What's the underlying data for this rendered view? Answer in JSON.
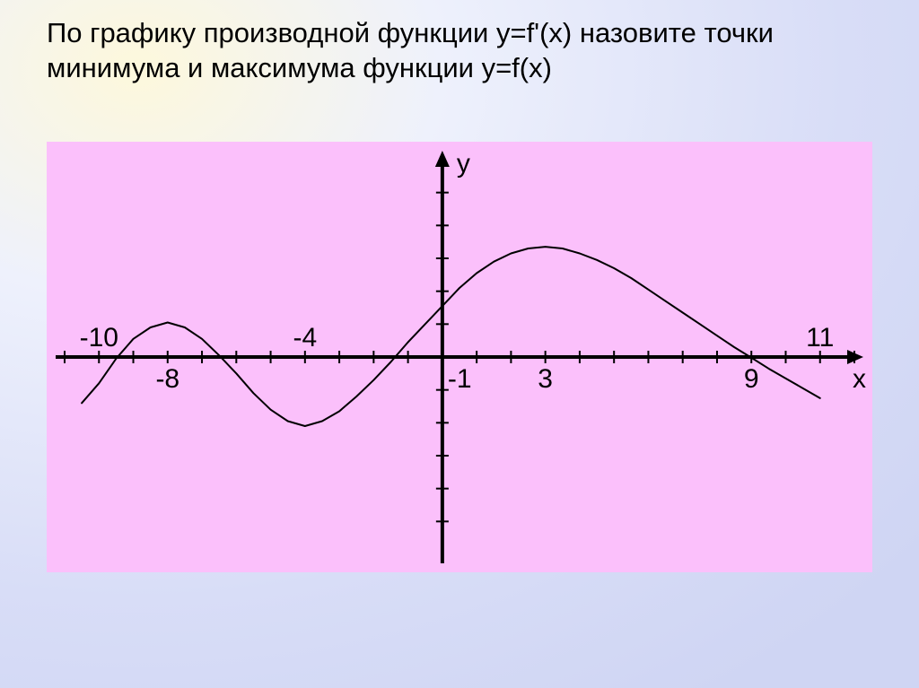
{
  "title_text": "По графику производной функции y=f'(x) назовите точки минимума и максимума функции y=f(x)",
  "background": {
    "stops": [
      "#fdf8dc",
      "#eef1fc",
      "#d8ddf7",
      "#cfd5f3"
    ]
  },
  "chart": {
    "type": "line",
    "plot_bg": "#fbc0fb",
    "axis_color": "#000000",
    "curve_color": "#000000",
    "curve_width": 2,
    "axis_width": 4,
    "tick_len": 7,
    "xlim": [
      -11,
      12
    ],
    "ylim": [
      -6,
      6
    ],
    "x_tick_min": -11,
    "x_tick_max": 12,
    "y_tick_min": -5,
    "y_tick_max": 5,
    "x_labels": [
      {
        "x": -10,
        "text": "-10",
        "dy": -12,
        "anchor": "middle"
      },
      {
        "x": -8,
        "text": "-8",
        "dy": 34,
        "anchor": "middle"
      },
      {
        "x": -4,
        "text": "-4",
        "dy": -12,
        "anchor": "middle"
      },
      {
        "x": -1,
        "text": "-1",
        "dy": 34,
        "anchor": "start"
      },
      {
        "x": 3,
        "text": "3",
        "dy": 34,
        "anchor": "middle"
      },
      {
        "x": 9,
        "text": "9",
        "dy": 34,
        "anchor": "middle"
      },
      {
        "x": 11,
        "text": "11",
        "dy": -12,
        "anchor": "middle"
      }
    ],
    "y_axis_label": "y",
    "x_axis_label": "x",
    "curve_points": [
      {
        "x": -10.5,
        "y": -1.4
      },
      {
        "x": -10.0,
        "y": -0.8
      },
      {
        "x": -9.5,
        "y": -0.05
      },
      {
        "x": -9.0,
        "y": 0.55
      },
      {
        "x": -8.5,
        "y": 0.9
      },
      {
        "x": -8.0,
        "y": 1.05
      },
      {
        "x": -7.5,
        "y": 0.9
      },
      {
        "x": -7.0,
        "y": 0.55
      },
      {
        "x": -6.5,
        "y": 0.05
      },
      {
        "x": -6.0,
        "y": -0.5
      },
      {
        "x": -5.5,
        "y": -1.1
      },
      {
        "x": -5.0,
        "y": -1.6
      },
      {
        "x": -4.5,
        "y": -1.95
      },
      {
        "x": -4.0,
        "y": -2.1
      },
      {
        "x": -3.5,
        "y": -1.95
      },
      {
        "x": -3.0,
        "y": -1.65
      },
      {
        "x": -2.5,
        "y": -1.2
      },
      {
        "x": -2.0,
        "y": -0.7
      },
      {
        "x": -1.5,
        "y": -0.15
      },
      {
        "x": -1.0,
        "y": 0.45
      },
      {
        "x": -0.5,
        "y": 1.0
      },
      {
        "x": 0.0,
        "y": 1.55
      },
      {
        "x": 0.5,
        "y": 2.1
      },
      {
        "x": 1.0,
        "y": 2.55
      },
      {
        "x": 1.5,
        "y": 2.9
      },
      {
        "x": 2.0,
        "y": 3.15
      },
      {
        "x": 2.5,
        "y": 3.3
      },
      {
        "x": 3.0,
        "y": 3.35
      },
      {
        "x": 3.5,
        "y": 3.3
      },
      {
        "x": 4.0,
        "y": 3.15
      },
      {
        "x": 4.5,
        "y": 2.95
      },
      {
        "x": 5.0,
        "y": 2.7
      },
      {
        "x": 5.5,
        "y": 2.4
      },
      {
        "x": 6.0,
        "y": 2.05
      },
      {
        "x": 6.5,
        "y": 1.7
      },
      {
        "x": 7.0,
        "y": 1.35
      },
      {
        "x": 7.5,
        "y": 1.0
      },
      {
        "x": 8.0,
        "y": 0.65
      },
      {
        "x": 8.5,
        "y": 0.3
      },
      {
        "x": 9.0,
        "y": -0.02
      },
      {
        "x": 9.5,
        "y": -0.35
      },
      {
        "x": 10.0,
        "y": -0.65
      },
      {
        "x": 10.5,
        "y": -0.95
      },
      {
        "x": 11.0,
        "y": -1.25
      }
    ]
  }
}
